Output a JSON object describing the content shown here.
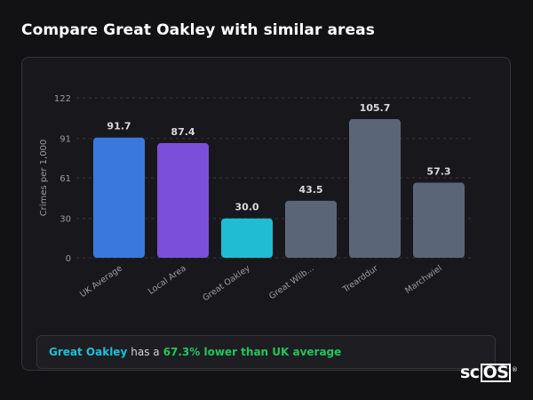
{
  "header": {
    "title": "Compare Great Oakley with similar areas"
  },
  "chart_data": {
    "type": "bar",
    "ylabel": "Crimes per 1,000",
    "y_ticks": [
      0,
      30,
      61,
      91,
      122
    ],
    "ylim": [
      0,
      122
    ],
    "grid": true,
    "categories": [
      "UK Average",
      "Local Area",
      "Great Oakley",
      "Great Wilb...",
      "Trearddur",
      "Marchwiel"
    ],
    "values": [
      91.7,
      87.4,
      30.0,
      43.5,
      105.7,
      57.3
    ],
    "value_labels": [
      "91.7",
      "87.4",
      "30.0",
      "43.5",
      "105.7",
      "57.3"
    ],
    "colors": [
      "#3a78dd",
      "#7b4fd9",
      "#1fbcd3",
      "#5a6577",
      "#5a6577",
      "#5a6577"
    ]
  },
  "summary": {
    "area": "Great Oakley",
    "connector": "has a",
    "comparison": "67.3% lower than UK average"
  },
  "logo": {
    "text_left": "sc",
    "text_boxed": "OS",
    "mark": "®"
  }
}
